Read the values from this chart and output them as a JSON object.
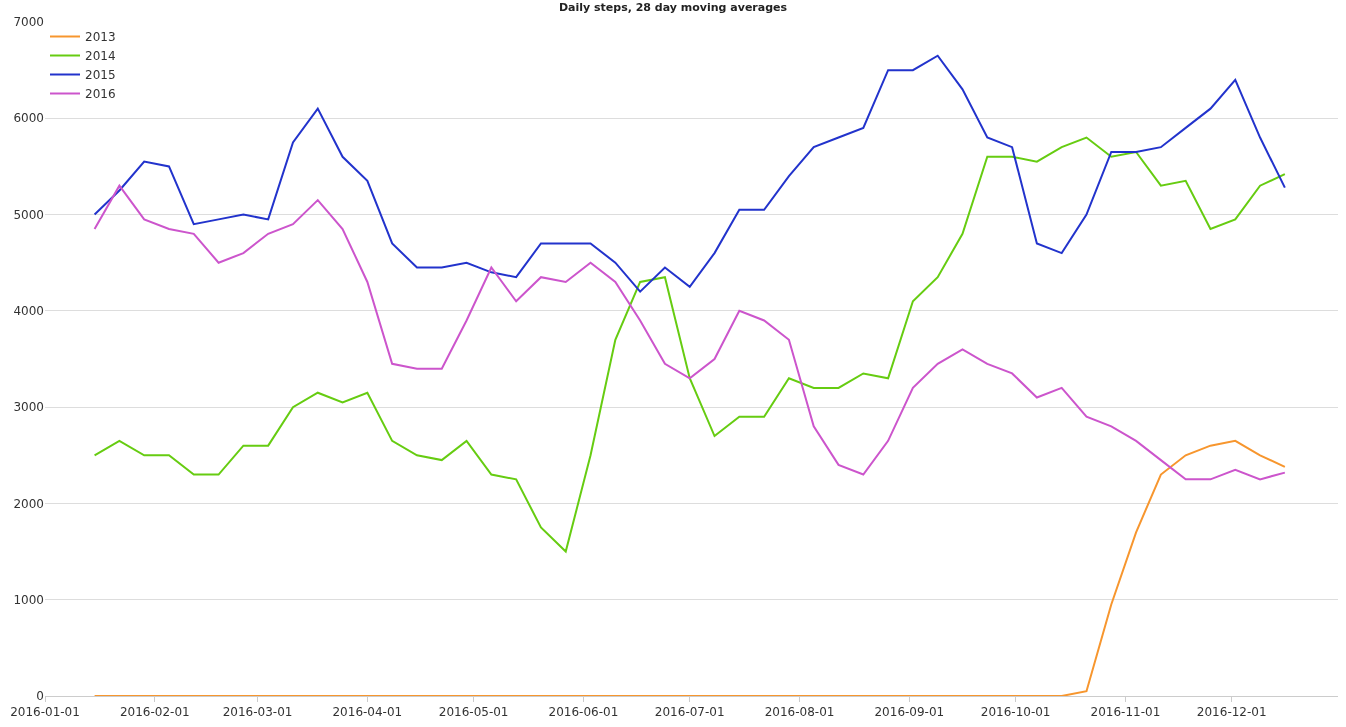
{
  "chart_data": {
    "type": "line",
    "title": "Daily steps, 28 day moving averages",
    "x": [
      "2016-01-15",
      "2016-01-22",
      "2016-01-29",
      "2016-02-05",
      "2016-02-12",
      "2016-02-19",
      "2016-02-26",
      "2016-03-04",
      "2016-03-11",
      "2016-03-18",
      "2016-03-25",
      "2016-04-01",
      "2016-04-08",
      "2016-04-15",
      "2016-04-22",
      "2016-04-29",
      "2016-05-06",
      "2016-05-13",
      "2016-05-20",
      "2016-05-27",
      "2016-06-03",
      "2016-06-10",
      "2016-06-17",
      "2016-06-24",
      "2016-07-01",
      "2016-07-08",
      "2016-07-15",
      "2016-07-22",
      "2016-07-29",
      "2016-08-05",
      "2016-08-12",
      "2016-08-19",
      "2016-08-26",
      "2016-09-02",
      "2016-09-09",
      "2016-09-16",
      "2016-09-23",
      "2016-09-30",
      "2016-10-07",
      "2016-10-14",
      "2016-10-21",
      "2016-10-28",
      "2016-11-04",
      "2016-11-11",
      "2016-11-18",
      "2016-11-25",
      "2016-12-02",
      "2016-12-09",
      "2016-12-16"
    ],
    "series": [
      {
        "name": "2013",
        "color": "#f7962e",
        "values": [
          0,
          0,
          0,
          0,
          0,
          0,
          0,
          0,
          0,
          0,
          0,
          0,
          0,
          0,
          0,
          0,
          0,
          0,
          0,
          0,
          0,
          0,
          0,
          0,
          0,
          0,
          0,
          0,
          0,
          0,
          0,
          0,
          0,
          0,
          0,
          0,
          0,
          0,
          0,
          0,
          50,
          950,
          1700,
          2300,
          2500,
          2600,
          2650,
          2500,
          2380
        ]
      },
      {
        "name": "2014",
        "color": "#66cc11",
        "values": [
          2500,
          2650,
          2500,
          2500,
          2300,
          2300,
          2600,
          2600,
          3000,
          3150,
          3050,
          3150,
          2650,
          2500,
          2450,
          2650,
          2300,
          2250,
          1750,
          1500,
          2500,
          3700,
          4300,
          4350,
          3300,
          2700,
          2900,
          2900,
          3300,
          3200,
          3200,
          3350,
          3300,
          4100,
          4350,
          4800,
          5600,
          5600,
          5550,
          5700,
          5800,
          5600,
          5650,
          5300,
          5350,
          4850,
          4950,
          5300,
          5420
        ]
      },
      {
        "name": "2015",
        "color": "#2233cc",
        "values": [
          5000,
          5250,
          5550,
          5500,
          4900,
          4950,
          5000,
          4950,
          5750,
          6100,
          5600,
          5350,
          4700,
          4450,
          4450,
          4500,
          4400,
          4350,
          4700,
          4700,
          4700,
          4500,
          4200,
          4450,
          4250,
          4600,
          5050,
          5050,
          5400,
          5700,
          5800,
          5900,
          6500,
          6500,
          6650,
          6300,
          5800,
          5700,
          4700,
          4600,
          5000,
          5650,
          5650,
          5700,
          5900,
          6100,
          6400,
          5800,
          5280
        ]
      },
      {
        "name": "2016",
        "color": "#cc55cc",
        "values": [
          4850,
          5300,
          4950,
          4850,
          4800,
          4500,
          4600,
          4800,
          4900,
          5150,
          4850,
          4300,
          3450,
          3400,
          3400,
          3900,
          4450,
          4100,
          4350,
          4300,
          4500,
          4300,
          3900,
          3450,
          3300,
          3500,
          4000,
          3900,
          3700,
          2800,
          2400,
          2300,
          2650,
          3200,
          3450,
          3600,
          3450,
          3350,
          3100,
          3200,
          2900,
          2800,
          2650,
          2450,
          2250,
          2250,
          2350,
          2250,
          2320
        ]
      }
    ],
    "xlim": [
      "2016-01-01",
      "2016-12-31"
    ],
    "xticks": [
      "2016-01-01",
      "2016-02-01",
      "2016-03-01",
      "2016-04-01",
      "2016-05-01",
      "2016-06-01",
      "2016-07-01",
      "2016-08-01",
      "2016-09-01",
      "2016-10-01",
      "2016-11-01",
      "2016-12-01"
    ],
    "ylim": [
      0,
      7000
    ],
    "yticks": [
      0,
      1000,
      2000,
      3000,
      4000,
      5000,
      6000,
      7000
    ],
    "grid": "y",
    "legend": "top left",
    "marker": "none",
    "line_style": "solid"
  }
}
